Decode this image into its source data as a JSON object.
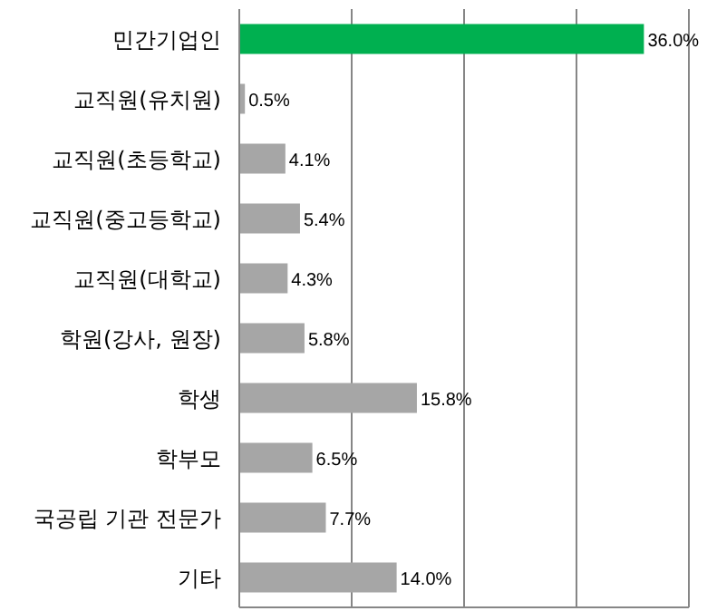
{
  "chart_data": {
    "type": "bar",
    "orientation": "horizontal",
    "categories": [
      "민간기업인",
      "교직원(유치원)",
      "교직원(초등학교)",
      "교직원(중고등학교)",
      "교직원(대학교)",
      "학원(강사, 원장)",
      "학생",
      "학부모",
      "국공립 기관 전문가",
      "기타"
    ],
    "values": [
      36.0,
      0.5,
      4.1,
      5.4,
      4.3,
      5.8,
      15.8,
      6.5,
      7.7,
      14.0
    ],
    "value_labels": [
      "36.0%",
      "0.5%",
      "4.1%",
      "5.4%",
      "4.3%",
      "5.8%",
      "15.8%",
      "6.5%",
      "7.7%",
      "14.0%"
    ],
    "colors": [
      "#00b050",
      "#a6a6a6",
      "#a6a6a6",
      "#a6a6a6",
      "#a6a6a6",
      "#a6a6a6",
      "#a6a6a6",
      "#a6a6a6",
      "#a6a6a6",
      "#a6a6a6"
    ],
    "xlim": [
      0,
      40
    ],
    "xticks": [
      {
        "value": 0,
        "label": null
      },
      {
        "value": 10,
        "label": null
      },
      {
        "value": 20,
        "label": null
      },
      {
        "value": 30,
        "label": null
      },
      {
        "value": 40,
        "label": null
      }
    ],
    "tick_labels": "y",
    "grid": "x"
  }
}
